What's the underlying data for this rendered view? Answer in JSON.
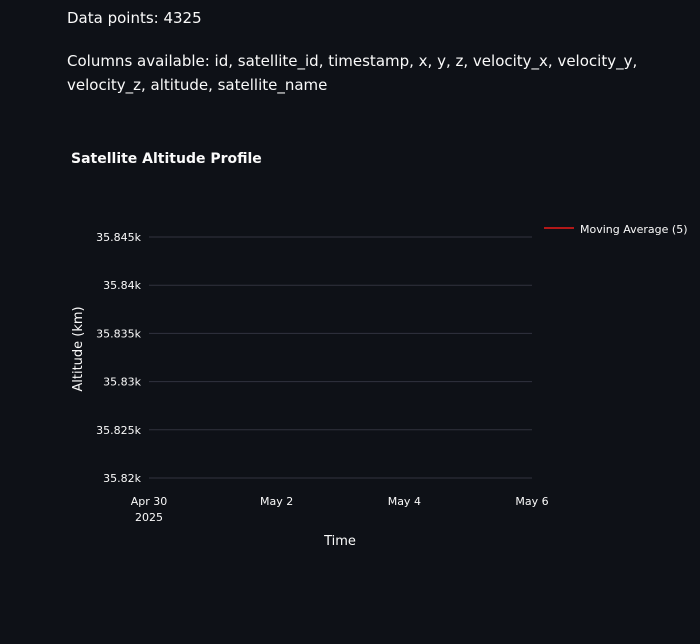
{
  "info": {
    "data_points": "Data points: 4325",
    "columns": "Columns available: id, satellite_id, timestamp, x, y, z, velocity_x, velocity_y, velocity_z, altitude, satellite_name"
  },
  "colors": {
    "background": "#0e1117",
    "text": "#fafafa",
    "grid": "#31333f",
    "series": "#b21818"
  },
  "chart_data": {
    "type": "line",
    "title": "Satellite Altitude Profile",
    "xlabel": "Time",
    "ylabel": "Altitude (km)",
    "x_ticks": [
      {
        "label": "Apr 30",
        "sublabel": "2025",
        "value": 0
      },
      {
        "label": "May 2",
        "value": 2
      },
      {
        "label": "May 4",
        "value": 4
      },
      {
        "label": "May 6",
        "value": 6
      }
    ],
    "xlim": [
      0,
      6
    ],
    "y_ticks": [
      {
        "label": "35.82k",
        "value": 35820
      },
      {
        "label": "35.825k",
        "value": 35825
      },
      {
        "label": "35.83k",
        "value": 35830
      },
      {
        "label": "35.835k",
        "value": 35835
      },
      {
        "label": "35.84k",
        "value": 35840
      },
      {
        "label": "35.845k",
        "value": 35845
      }
    ],
    "ylim": [
      35820,
      35845
    ],
    "grid": true,
    "legend_position": "top-right",
    "series": [
      {
        "name": "Moving Average (5)",
        "color": "#b21818",
        "x": [],
        "y": []
      }
    ]
  }
}
